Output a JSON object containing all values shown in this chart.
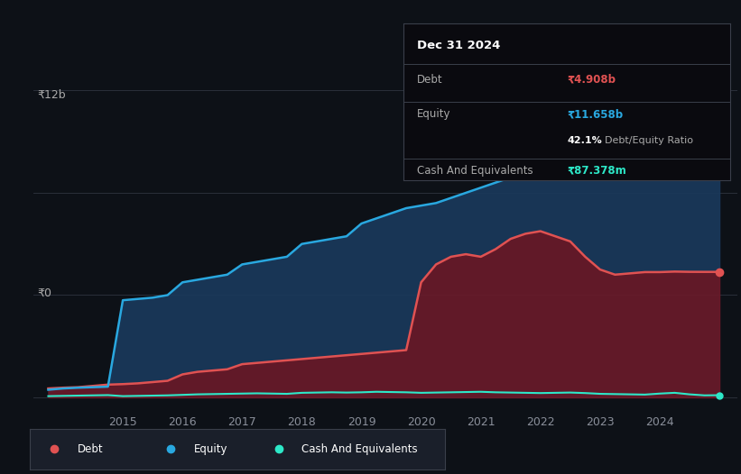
{
  "bg_color": "#0d1117",
  "plot_bg_color": "#0d1117",
  "title": "Dec 31 2024",
  "tooltip": {
    "debt_label": "Debt",
    "debt_value": "₹4.908b",
    "equity_label": "Equity",
    "equity_value": "₹11.658b",
    "ratio_value": "42.1% Debt/Equity Ratio",
    "cash_label": "Cash And Equivalents",
    "cash_value": "₹87.378m"
  },
  "ylabel_12b": "₹12b",
  "ylabel_0": "₹0",
  "xlim": [
    2013.5,
    2025.3
  ],
  "ylim": [
    -0.4,
    13.5
  ],
  "debt_color": "#e05252",
  "equity_color": "#29a8e0",
  "cash_color": "#2de8c8",
  "debt_fill_color": "#6b1a2a",
  "equity_fill_color": "#1a3a5c",
  "grid_color": "#2a2f3a",
  "legend_bg": "#1a1f2a",
  "legend_border": "#3a3f4a",
  "tooltip_bg": "#0a0a0f",
  "tooltip_border": "#3a3f4a",
  "years": [
    2013.75,
    2014.0,
    2014.25,
    2014.5,
    2014.75,
    2015.0,
    2015.25,
    2015.5,
    2015.75,
    2016.0,
    2016.25,
    2016.5,
    2016.75,
    2017.0,
    2017.25,
    2017.5,
    2017.75,
    2018.0,
    2018.25,
    2018.5,
    2018.75,
    2019.0,
    2019.25,
    2019.5,
    2019.75,
    2020.0,
    2020.25,
    2020.5,
    2020.75,
    2021.0,
    2021.25,
    2021.5,
    2021.75,
    2022.0,
    2022.25,
    2022.5,
    2022.75,
    2023.0,
    2023.25,
    2023.5,
    2023.75,
    2024.0,
    2024.25,
    2024.5,
    2024.75,
    2025.0
  ],
  "debt": [
    0.35,
    0.38,
    0.4,
    0.45,
    0.5,
    0.52,
    0.55,
    0.6,
    0.65,
    0.9,
    1.0,
    1.05,
    1.1,
    1.3,
    1.35,
    1.4,
    1.45,
    1.5,
    1.55,
    1.6,
    1.65,
    1.7,
    1.75,
    1.8,
    1.85,
    4.5,
    5.2,
    5.5,
    5.6,
    5.5,
    5.8,
    6.2,
    6.4,
    6.5,
    6.3,
    6.1,
    5.5,
    5.0,
    4.8,
    4.85,
    4.9,
    4.9,
    4.92,
    4.91,
    4.908,
    4.908
  ],
  "equity": [
    0.3,
    0.35,
    0.38,
    0.4,
    0.42,
    3.8,
    3.85,
    3.9,
    4.0,
    4.5,
    4.6,
    4.7,
    4.8,
    5.2,
    5.3,
    5.4,
    5.5,
    6.0,
    6.1,
    6.2,
    6.3,
    6.8,
    7.0,
    7.2,
    7.4,
    7.5,
    7.6,
    7.8,
    8.0,
    8.2,
    8.4,
    8.6,
    8.8,
    9.0,
    9.2,
    9.4,
    9.5,
    9.6,
    9.5,
    9.6,
    9.8,
    10.5,
    11.0,
    11.3,
    11.6,
    11.658
  ],
  "cash": [
    0.05,
    0.06,
    0.07,
    0.08,
    0.09,
    0.05,
    0.06,
    0.07,
    0.08,
    0.1,
    0.12,
    0.13,
    0.14,
    0.15,
    0.16,
    0.15,
    0.14,
    0.18,
    0.19,
    0.2,
    0.19,
    0.2,
    0.22,
    0.21,
    0.2,
    0.18,
    0.19,
    0.2,
    0.21,
    0.22,
    0.2,
    0.19,
    0.18,
    0.17,
    0.18,
    0.19,
    0.17,
    0.14,
    0.13,
    0.12,
    0.11,
    0.15,
    0.18,
    0.12,
    0.08,
    0.087
  ],
  "xticks": [
    2015,
    2016,
    2017,
    2018,
    2019,
    2020,
    2021,
    2022,
    2023,
    2024
  ],
  "grid_yvals": [
    0,
    4,
    8,
    12
  ]
}
